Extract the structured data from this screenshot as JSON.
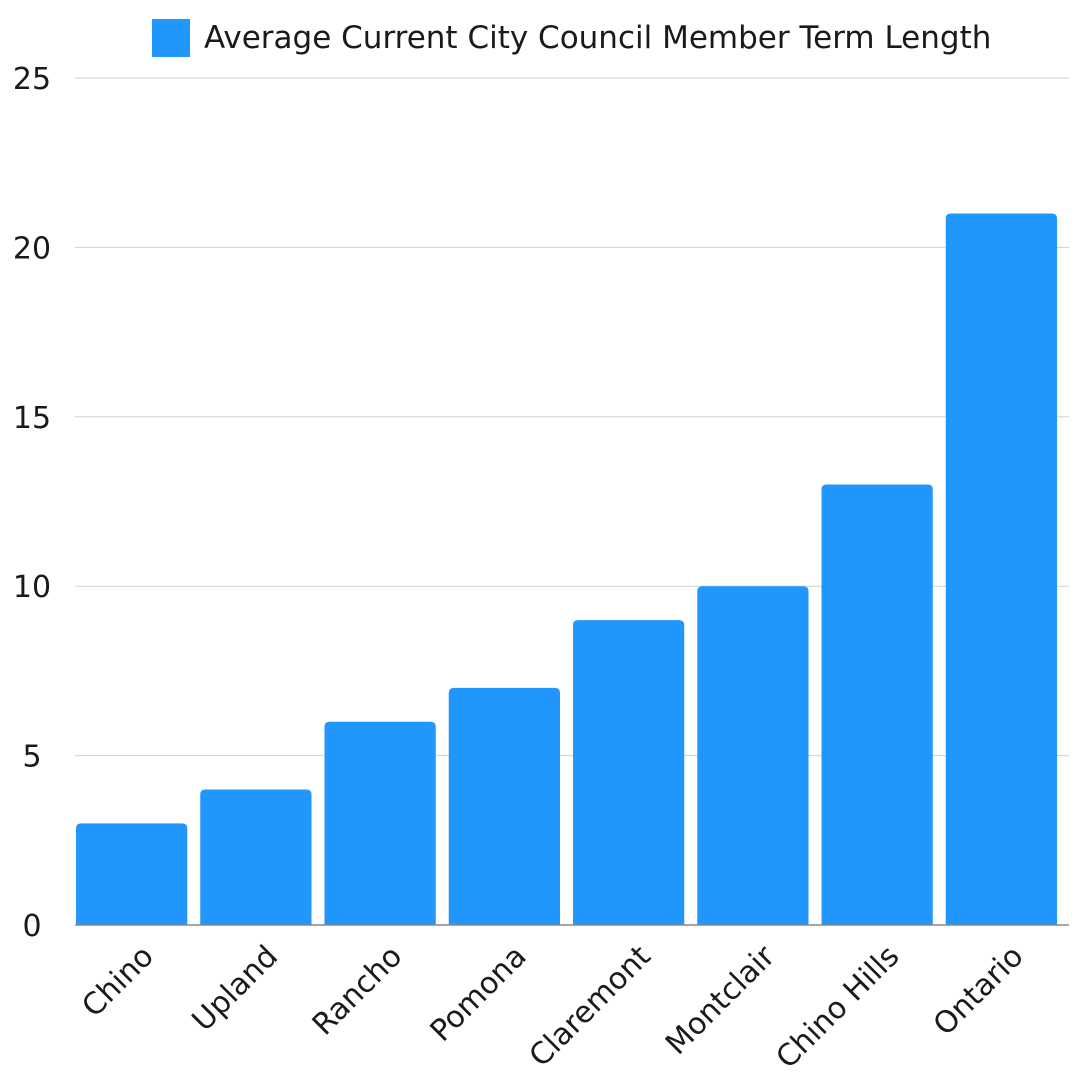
{
  "colors": {
    "bar": "#2196FD",
    "grid": "#D0D0D0",
    "axis": "#888888",
    "text": "#1A1A1A"
  },
  "chart_data": {
    "type": "bar",
    "categories": [
      "Chino",
      "Upland",
      "Rancho",
      "Pomona",
      "Claremont",
      "Montclair",
      "Chino Hills",
      "Ontario"
    ],
    "series": [
      {
        "name": "Average Current City Council Member Term Length",
        "values": [
          3,
          4,
          6,
          7,
          9,
          10,
          13,
          21
        ]
      }
    ],
    "ylim": [
      0,
      25
    ],
    "yticks": [
      "0",
      "5",
      "10",
      "15",
      "20",
      "25"
    ],
    "grid": true,
    "legend_position": "top-center",
    "xlabel": "",
    "ylabel": ""
  }
}
